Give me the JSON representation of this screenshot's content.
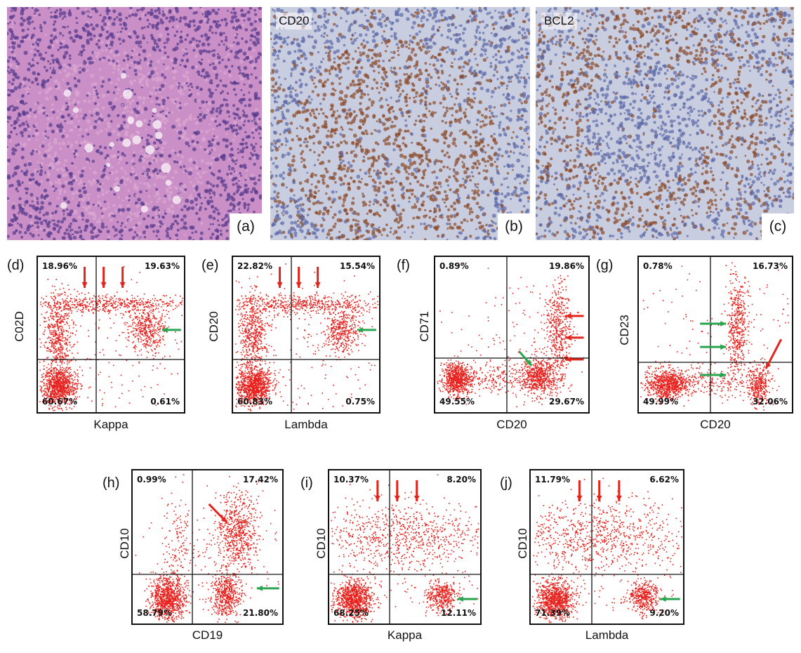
{
  "photos": [
    {
      "id": "a",
      "letter": "(a)",
      "title": "",
      "stain": "he"
    },
    {
      "id": "b",
      "letter": "(b)",
      "title": "CD20",
      "stain": "cd20"
    },
    {
      "id": "c",
      "letter": "(c)",
      "title": "BCL2",
      "stain": "bcl2"
    }
  ],
  "colors": {
    "dots": "#e8211d",
    "red_arrow": "#e3241b",
    "green_arrow": "#2aa44f",
    "he_bg": "#c98fc6",
    "ihc_bg": "#c9cde0",
    "brown": "#8a4a2a"
  },
  "plots": [
    {
      "id": "d",
      "letter": "(d)",
      "xlabel": "Kappa",
      "ylabel": "C02D",
      "quadrants": {
        "ul": "18.96%",
        "ur": "19.63%",
        "ll": "60.67%",
        "lr": "0.61%"
      },
      "pattern": "light-chain",
      "red_arrows": 3,
      "green_arrows": 1
    },
    {
      "id": "e",
      "letter": "(e)",
      "xlabel": "Lambda",
      "ylabel": "CD20",
      "quadrants": {
        "ul": "22.82%",
        "ur": "15.54%",
        "ll": "60.83%",
        "lr": "0.75%"
      },
      "pattern": "light-chain",
      "red_arrows": 3,
      "green_arrows": 1
    },
    {
      "id": "f",
      "letter": "(f)",
      "xlabel": "CD20",
      "ylabel": "CD71",
      "quadrants": {
        "ul": "0.89%",
        "ur": "19.86%",
        "ll": "49.55%",
        "lr": "29.67%"
      },
      "pattern": "cd71",
      "red_arrows": 3,
      "green_arrows": 1
    },
    {
      "id": "g",
      "letter": "(g)",
      "xlabel": "CD20",
      "ylabel": "CD23",
      "quadrants": {
        "ul": "0.78%",
        "ur": "16.73%",
        "ll": "49.99%",
        "lr": "32.06%"
      },
      "pattern": "cd23",
      "red_arrows": 1,
      "green_arrows": 3
    },
    {
      "id": "h",
      "letter": "(h)",
      "xlabel": "CD19",
      "ylabel": "CD10",
      "quadrants": {
        "ul": "0.99%",
        "ur": "17.42%",
        "ll": "58.79%",
        "lr": "21.80%"
      },
      "pattern": "cd19",
      "red_arrows": 1,
      "green_arrows": 1
    },
    {
      "id": "i",
      "letter": "(i)",
      "xlabel": "Kappa",
      "ylabel": "CD10",
      "quadrants": {
        "ul": "10.37%",
        "ur": "8.20%",
        "ll": "68.25%",
        "lr": "12.11%"
      },
      "pattern": "cd10-light",
      "red_arrows": 3,
      "green_arrows": 1
    },
    {
      "id": "j",
      "letter": "(j)",
      "xlabel": "Lambda",
      "ylabel": "CD10",
      "quadrants": {
        "ul": "11.79%",
        "ur": "6.62%",
        "ll": "71.39%",
        "lr": "9.20%"
      },
      "pattern": "cd10-light",
      "red_arrows": 3,
      "green_arrows": 1
    }
  ]
}
